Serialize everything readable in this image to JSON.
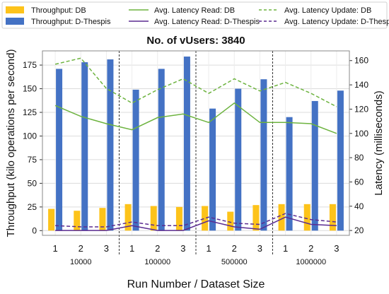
{
  "chart_data": {
    "type": "bar",
    "title": "No. of vUsers: 3840",
    "xlabel": "Run Number / Dataset Size",
    "ylabel": "Throughput (kilo operations per second)",
    "y2label": "Latency (milliseconds)",
    "categories": [
      "1",
      "2",
      "3",
      "1",
      "2",
      "3",
      "1",
      "2",
      "3",
      "1",
      "2",
      "3"
    ],
    "groups": [
      "10000",
      "100000",
      "500000",
      "1000000"
    ],
    "ylim": [
      -5,
      190
    ],
    "y2lim": [
      16,
      168
    ],
    "yticks": [
      0,
      25,
      50,
      75,
      100,
      125,
      150,
      175
    ],
    "y2ticks": [
      20,
      40,
      60,
      80,
      100,
      120,
      140,
      160
    ],
    "grid": true,
    "legend_position": "top",
    "bar_series": [
      {
        "name": "Throughput: DB",
        "color": "#FDC31A",
        "values": [
          23,
          21,
          24,
          28,
          26,
          25,
          26,
          20,
          27,
          28,
          28,
          28
        ]
      },
      {
        "name": "Throughput: D-Thespis",
        "color": "#4472C4",
        "values": [
          171,
          178,
          181,
          149,
          171,
          184,
          129,
          150,
          160,
          120,
          137,
          148
        ]
      }
    ],
    "line_series": [
      {
        "name": "Avg. Latency Read: DB",
        "color": "#6DB33F",
        "dash": "solid",
        "axis": "right",
        "values": [
          123,
          114,
          108,
          103,
          113,
          116,
          109,
          125,
          109,
          109,
          108,
          100
        ]
      },
      {
        "name": "Avg. Latency Read: D-Thespis",
        "color": "#5B2C91",
        "dash": "solid",
        "axis": "right",
        "values": [
          20,
          20,
          20,
          24,
          20,
          20,
          28,
          23,
          21,
          31,
          25,
          24
        ]
      },
      {
        "name": "Avg. Latency Update: DB",
        "color": "#6DB33F",
        "dash": "dashed",
        "axis": "right",
        "values": [
          157,
          162,
          137,
          125,
          136,
          145,
          133,
          145,
          135,
          142,
          133,
          122
        ]
      },
      {
        "name": "Avg. Latency Update: D-Thespis",
        "color": "#5B2C91",
        "dash": "dashed",
        "axis": "right",
        "values": [
          24,
          23,
          23,
          27,
          24,
          24,
          31,
          26,
          25,
          34,
          29,
          27
        ]
      }
    ]
  }
}
